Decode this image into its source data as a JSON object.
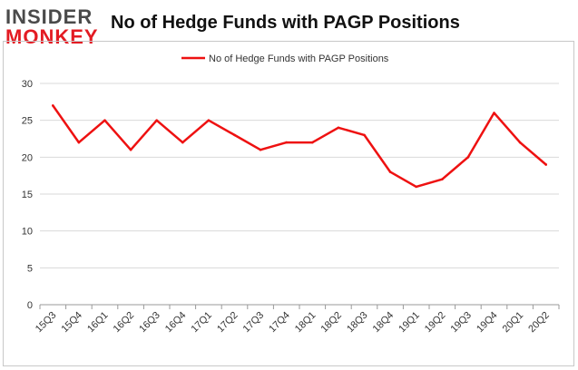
{
  "header": {
    "logo_top": "INSIDER",
    "logo_bottom": "MONKEY",
    "title": "No of Hedge Funds with PAGP Positions"
  },
  "colors": {
    "series": "#ee1111",
    "grid": "#d9d9d9",
    "axis": "#999999",
    "logo_gray": "#4a4a4a",
    "logo_red": "#e31b23"
  },
  "chart_data": {
    "type": "line",
    "title": "No of Hedge Funds with PAGP Positions",
    "xlabel": "",
    "ylabel": "",
    "ylim": [
      0,
      30
    ],
    "yticks": [
      0,
      5,
      10,
      15,
      20,
      25,
      30
    ],
    "grid": true,
    "legend_position": "top-center",
    "categories": [
      "15Q3",
      "15Q4",
      "16Q1",
      "16Q2",
      "16Q3",
      "16Q4",
      "17Q1",
      "17Q2",
      "17Q3",
      "17Q4",
      "18Q1",
      "18Q2",
      "18Q3",
      "18Q4",
      "19Q1",
      "19Q2",
      "19Q3",
      "19Q4",
      "20Q1",
      "20Q2"
    ],
    "series": [
      {
        "name": "No of Hedge Funds with PAGP Positions",
        "values": [
          27,
          22,
          25,
          21,
          25,
          22,
          25,
          23,
          21,
          22,
          22,
          24,
          23,
          18,
          16,
          17,
          20,
          26,
          22,
          19
        ]
      }
    ]
  }
}
